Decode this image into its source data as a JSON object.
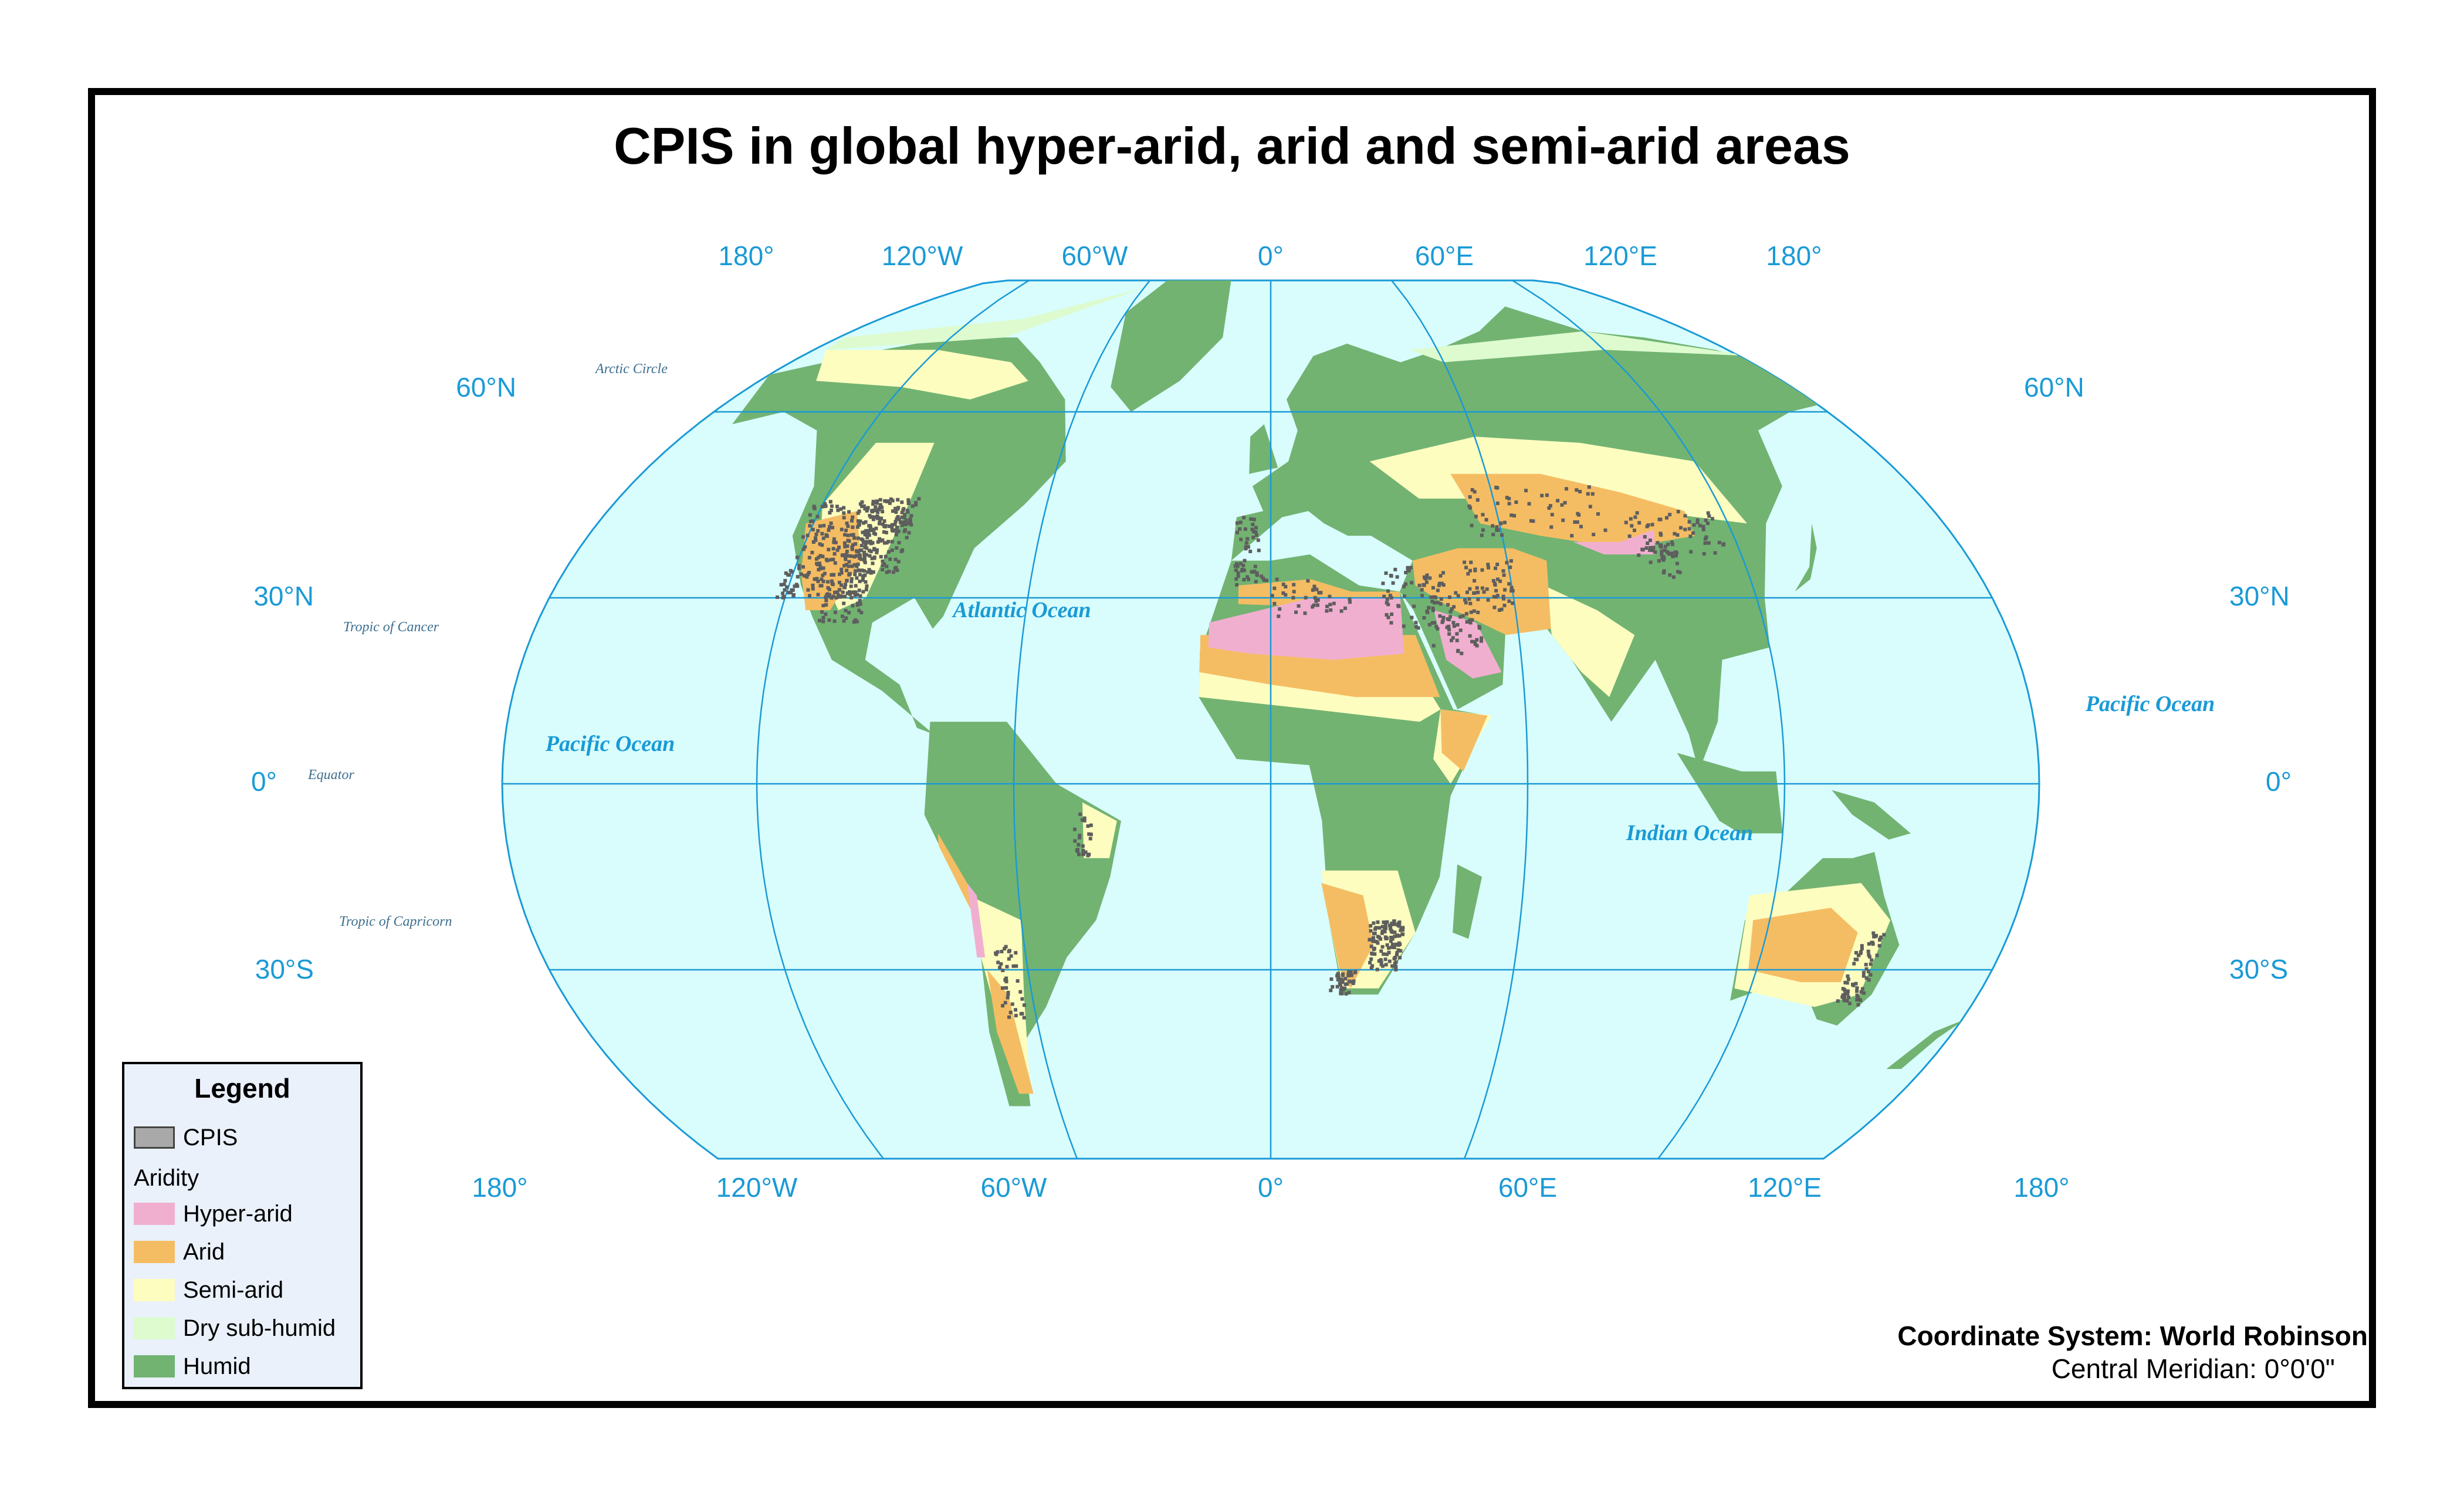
{
  "title": "CPIS in global hyper-arid, arid and semi-arid areas",
  "graticule": {
    "top_labels": [
      "180°",
      "120°W",
      "60°W",
      "0°",
      "60°E",
      "120°E",
      "180°"
    ],
    "bottom_labels": [
      "180°",
      "120°W",
      "60°W",
      "0°",
      "60°E",
      "120°E",
      "180°"
    ],
    "lat_labels": [
      "60°N",
      "30°N",
      "0°",
      "30°S"
    ]
  },
  "oceans": {
    "atlantic": "Atlantic Ocean",
    "pacific_west": "Pacific Ocean",
    "pacific_east": "Pacific Ocean",
    "indian": "Indian Ocean"
  },
  "reference_lines": {
    "arctic_circle": "Arctic Circle",
    "tropic_cancer": "Tropic of Cancer",
    "equator": "Equator",
    "tropic_capricorn": "Tropic of Capricorn"
  },
  "legend": {
    "title": "Legend",
    "cpis_label": "CPIS",
    "aridity_heading": "Aridity",
    "items": [
      {
        "label": "Hyper-arid",
        "color": "#f1afd0"
      },
      {
        "label": "Arid",
        "color": "#f5bd63"
      },
      {
        "label": "Semi-arid",
        "color": "#fdfdbf"
      },
      {
        "label": "Dry sub-humid",
        "color": "#ddfbcf"
      },
      {
        "label": "Humid",
        "color": "#72b372"
      }
    ],
    "cpis_color": "#a9a9a9"
  },
  "colors": {
    "ocean": "#d9fdfd",
    "graticule": "#1a9ad6",
    "cpis_dot": "#5e5e5e"
  },
  "footer": {
    "coordinate_system": "Coordinate System: World Robinson",
    "central_meridian": "Central Meridian: 0°0'0\""
  }
}
